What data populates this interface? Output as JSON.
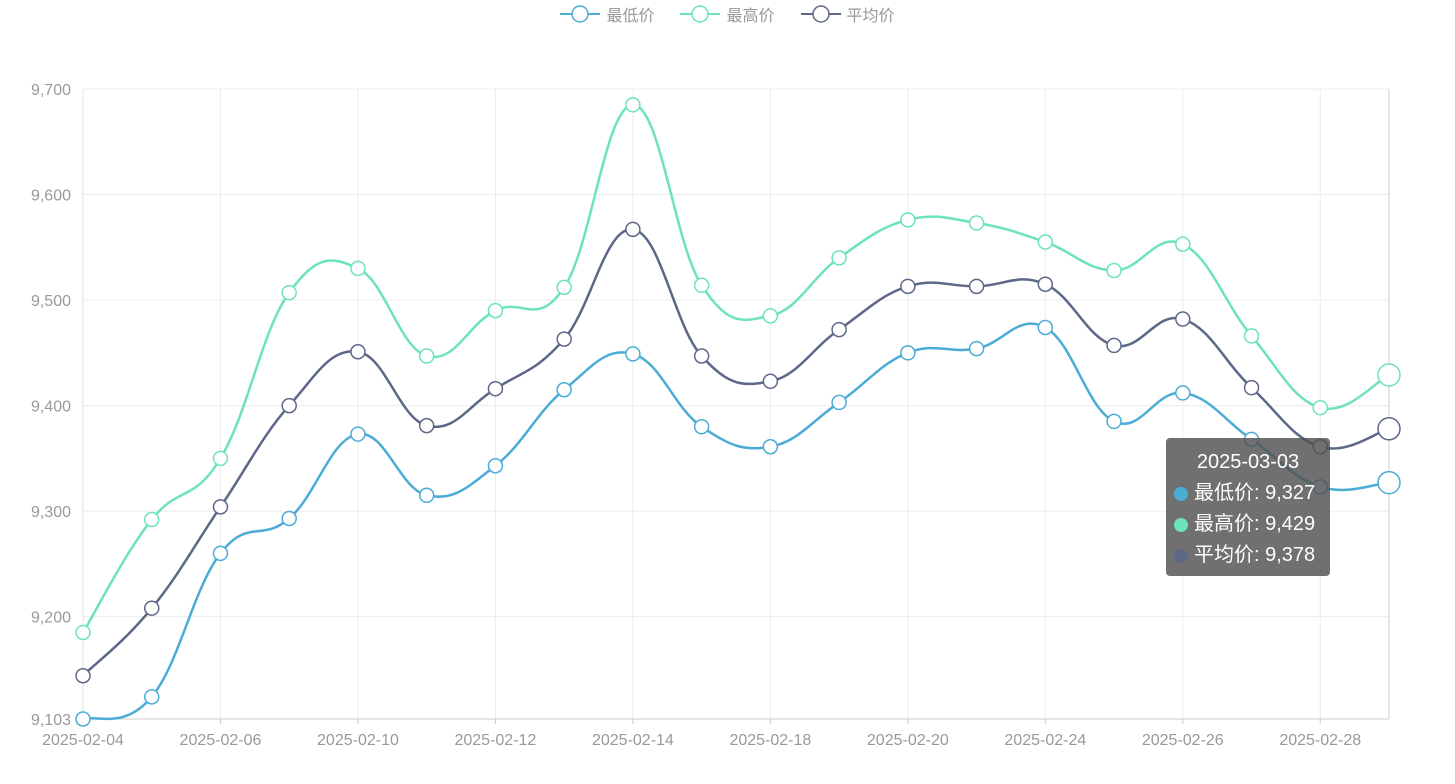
{
  "chart_data": {
    "type": "line",
    "smooth": true,
    "title": "",
    "xlabel": "",
    "ylabel": "",
    "ylim": [
      9103,
      9700
    ],
    "y_ticks": [
      9103,
      9200,
      9300,
      9400,
      9500,
      9600,
      9700
    ],
    "y_tick_labels": [
      "9,103",
      "9,200",
      "9,300",
      "9,400",
      "9,500",
      "9,600",
      "9,700"
    ],
    "x": [
      "2025-02-04",
      "2025-02-05",
      "2025-02-06",
      "2025-02-07",
      "2025-02-10",
      "2025-02-11",
      "2025-02-12",
      "2025-02-13",
      "2025-02-14",
      "2025-02-17",
      "2025-02-18",
      "2025-02-19",
      "2025-02-20",
      "2025-02-21",
      "2025-02-24",
      "2025-02-25",
      "2025-02-26",
      "2025-02-27",
      "2025-02-28",
      "2025-03-03"
    ],
    "x_tick_labels": [
      "2025-02-04",
      "2025-02-06",
      "2025-02-10",
      "2025-02-12",
      "2025-02-14",
      "2025-02-18",
      "2025-02-20",
      "2025-02-24",
      "2025-02-26",
      "2025-02-28"
    ],
    "grid": true,
    "legend_position": "top-center",
    "series": [
      {
        "name": "最低价",
        "color": "#4bacd6",
        "values": [
          9103,
          9124,
          9260,
          9293,
          9373,
          9315,
          9343,
          9415,
          9449,
          9380,
          9361,
          9403,
          9450,
          9454,
          9474,
          9385,
          9412,
          9368,
          9323,
          9327
        ]
      },
      {
        "name": "最高价",
        "color": "#6de2bf",
        "values": [
          9185,
          9292,
          9350,
          9507,
          9530,
          9447,
          9490,
          9512,
          9685,
          9514,
          9485,
          9540,
          9576,
          9573,
          9555,
          9528,
          9553,
          9466,
          9398,
          9429
        ]
      },
      {
        "name": "平均价",
        "color": "#5d6889",
        "values": [
          9144,
          9208,
          9304,
          9400,
          9451,
          9381,
          9416,
          9463,
          9567,
          9447,
          9423,
          9472,
          9513,
          9513,
          9515,
          9457,
          9482,
          9417,
          9361,
          9378
        ]
      }
    ]
  },
  "tooltip": {
    "title": "2025-03-03",
    "rows": [
      {
        "label": "最低价: 9,327",
        "color": "#4bacd6"
      },
      {
        "label": "最高价: 9,429",
        "color": "#6de2bf"
      },
      {
        "label": "平均价: 9,378",
        "color": "#5d6889"
      }
    ]
  }
}
